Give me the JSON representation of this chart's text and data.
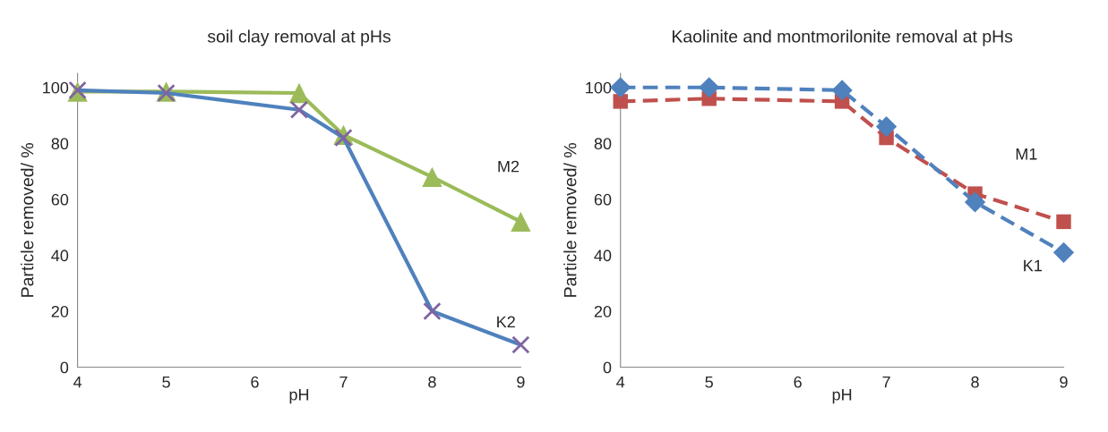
{
  "chart_data": [
    {
      "type": "line",
      "title": "soil clay removal at pHs",
      "xlabel": "pH",
      "ylabel": "Particle removed/ %",
      "xlim": [
        4,
        9
      ],
      "xticks": [
        4,
        5,
        6,
        7,
        8,
        9
      ],
      "ylim": [
        0,
        105
      ],
      "yticks": [
        0,
        20,
        40,
        60,
        80,
        100
      ],
      "grid": false,
      "legend": false,
      "series": [
        {
          "name": "M2",
          "color": "#9bbb59",
          "marker": "triangle",
          "line_style": "solid",
          "x": [
            4,
            5,
            6.5,
            7,
            8,
            9
          ],
          "values": [
            98.5,
            98.5,
            98,
            83,
            68,
            52
          ]
        },
        {
          "name": "K2",
          "color": "#4f81bd",
          "colors": [
            "#8064a2",
            "#8064a2",
            "#8064a2",
            "#8064a2",
            "#8064a2",
            "#8064a2"
          ],
          "marker": "cross",
          "line_style": "solid",
          "x": [
            4,
            5,
            6.5,
            7,
            8,
            9
          ],
          "values": [
            99,
            98,
            92,
            82,
            20,
            8
          ]
        }
      ]
    },
    {
      "type": "line",
      "title": "Kaolinite and montmorilonite removal at pHs",
      "xlabel": "pH",
      "ylabel": "Particle removed/ %",
      "xlim": [
        4,
        9
      ],
      "xticks": [
        4,
        5,
        6,
        7,
        8,
        9
      ],
      "ylim": [
        0,
        105
      ],
      "yticks": [
        0,
        20,
        40,
        60,
        80,
        100
      ],
      "grid": false,
      "legend": false,
      "series": [
        {
          "name": "M1",
          "color": "#c0504d",
          "marker": "square",
          "line_style": "dashed",
          "x": [
            4,
            5,
            6.5,
            7,
            8,
            9
          ],
          "values": [
            95,
            96,
            95,
            82,
            62,
            52
          ]
        },
        {
          "name": "K1",
          "color": "#4f81bd",
          "marker": "diamond",
          "line_style": "dashed",
          "x": [
            4,
            5,
            6.5,
            7,
            8,
            9
          ],
          "values": [
            100,
            100,
            99,
            86,
            59,
            41
          ]
        }
      ]
    }
  ]
}
